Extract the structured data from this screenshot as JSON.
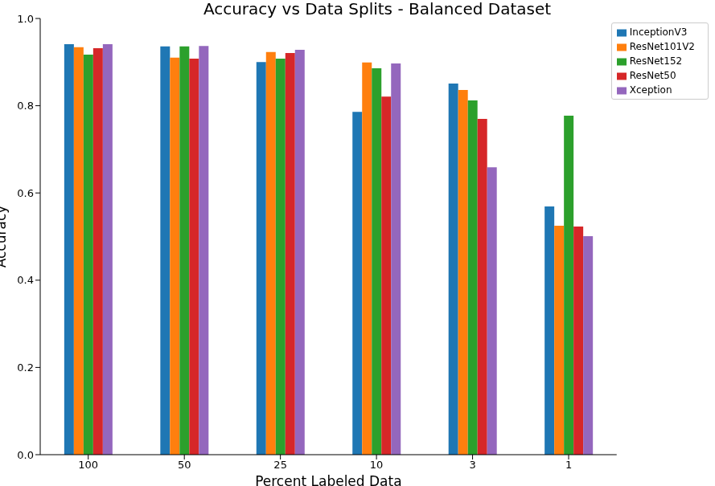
{
  "chart_data": {
    "type": "bar",
    "title": "Accuracy vs Data Splits - Balanced Dataset",
    "x_label": "Percent Labeled Data",
    "y_label": "Accuracy",
    "categories": [
      "100",
      "50",
      "25",
      "10",
      "3",
      "1"
    ],
    "series": [
      {
        "name": "InceptionV3",
        "color": "#1f77b4",
        "values": [
          0.941,
          0.936,
          0.9,
          0.786,
          0.851,
          0.569
        ]
      },
      {
        "name": "ResNet101V2",
        "color": "#ff7f0e",
        "values": [
          0.934,
          0.91,
          0.923,
          0.899,
          0.836,
          0.525
        ]
      },
      {
        "name": "ResNet152",
        "color": "#2ca02c",
        "values": [
          0.917,
          0.936,
          0.908,
          0.886,
          0.812,
          0.777
        ]
      },
      {
        "name": "ResNet50",
        "color": "#d62728",
        "values": [
          0.932,
          0.908,
          0.921,
          0.821,
          0.77,
          0.523
        ]
      },
      {
        "name": "Xception",
        "color": "#9467bd",
        "values": [
          0.941,
          0.937,
          0.928,
          0.897,
          0.659,
          0.501
        ]
      }
    ],
    "ylim": [
      0,
      1
    ],
    "yticks": [
      {
        "value": 0,
        "label": "0.0"
      },
      0.2,
      0.4,
      0.6,
      0.8,
      {
        "value": 1,
        "label": "1.0"
      }
    ],
    "grid": false,
    "legend": "upper right"
  }
}
